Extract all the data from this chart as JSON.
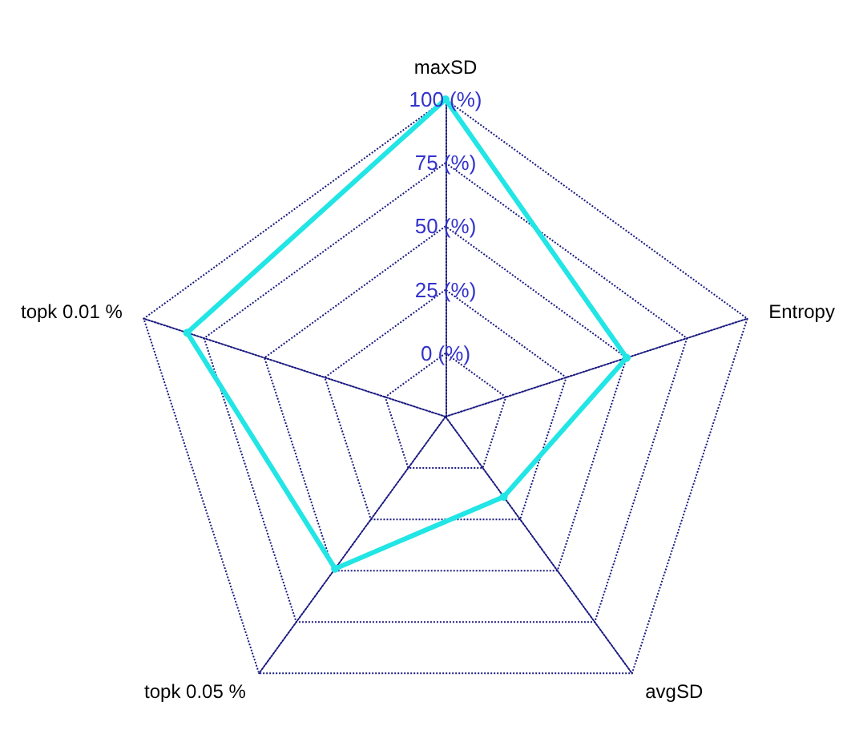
{
  "chart_data": {
    "type": "radar",
    "categories": [
      "maxSD",
      "Entropy",
      "avgSD",
      "topk 0.05 %",
      "topk 0.01 %"
    ],
    "series": [
      {
        "color": "#22e5e5",
        "values": [
          100,
          50,
          14,
          49,
          82
        ]
      }
    ],
    "ylim": [
      -25,
      100
    ],
    "yticks": [
      {
        "value": 0,
        "label": "0 (%)"
      },
      {
        "value": 25,
        "label": "25 (%)"
      },
      {
        "value": 50,
        "label": "50 (%)"
      },
      {
        "value": 75,
        "label": "75 (%)"
      },
      {
        "value": 100,
        "label": "100 (%)"
      }
    ],
    "grid": true,
    "marker": "circle",
    "line_style": "solid"
  }
}
